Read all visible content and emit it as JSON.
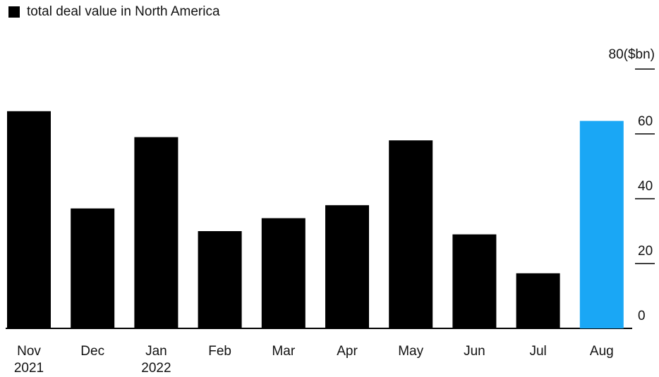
{
  "chart_data": {
    "type": "bar",
    "legend": {
      "label": "total deal value in North America",
      "color": "#000000"
    },
    "unit": "($bn)",
    "categories": [
      [
        "Nov",
        "2021"
      ],
      [
        "Dec"
      ],
      [
        "Jan",
        "2022"
      ],
      [
        "Feb"
      ],
      [
        "Mar"
      ],
      [
        "Apr"
      ],
      [
        "May"
      ],
      [
        "Jun"
      ],
      [
        "Jul"
      ],
      [
        "Aug"
      ]
    ],
    "values": [
      67,
      37,
      59,
      30,
      34,
      38,
      58,
      29,
      17,
      64
    ],
    "colors": [
      "#000000",
      "#000000",
      "#000000",
      "#000000",
      "#000000",
      "#000000",
      "#000000",
      "#000000",
      "#000000",
      "#1aa7f5"
    ],
    "yticks": [
      0,
      20,
      40,
      60,
      80
    ],
    "ylim": [
      0,
      80
    ],
    "axis_position": "right",
    "grid": false
  }
}
